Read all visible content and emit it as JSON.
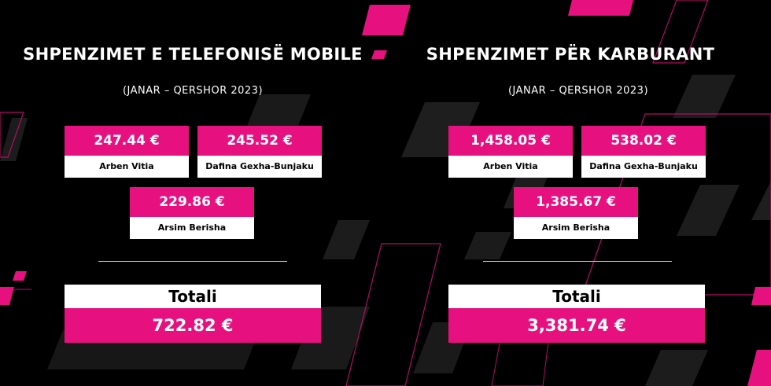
{
  "colors": {
    "background": "#000000",
    "accent": "#e6117f",
    "label_bg": "#ffffff",
    "shape_gray": "#1f1f1f"
  },
  "mobile": {
    "title": "SHPENZIMET E TELEFONISË MOBILE",
    "period": "(JANAR – QERSHOR 2023)",
    "entries": [
      {
        "amount": "247.44 €",
        "name": "Arben Vitia"
      },
      {
        "amount": "245.52 €",
        "name": "Dafina Gexha-Bunjaku"
      },
      {
        "amount": "229.86 €",
        "name": "Arsim Berisha"
      }
    ],
    "total_label": "Totali",
    "total_value": "722.82 €"
  },
  "fuel": {
    "title": "SHPENZIMET PËR KARBURANT",
    "period": "(JANAR – QERSHOR 2023)",
    "entries": [
      {
        "amount": "1,458.05 €",
        "name": "Arben Vitia"
      },
      {
        "amount": "538.02 €",
        "name": "Dafina Gexha-Bunjaku"
      },
      {
        "amount": "1,385.67 €",
        "name": "Arsim Berisha"
      }
    ],
    "total_label": "Totali",
    "total_value": "3,381.74 €"
  }
}
